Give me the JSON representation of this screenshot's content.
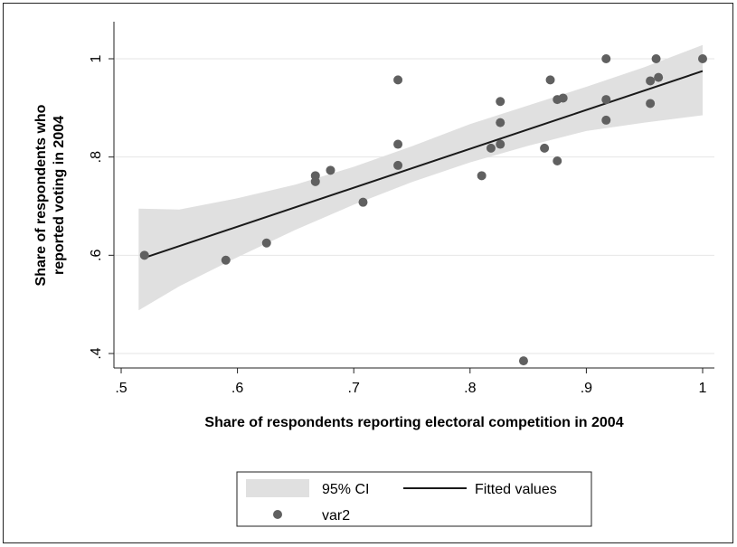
{
  "chart_data": {
    "type": "scatter",
    "xlabel": "Share of respondents reporting electoral competition in 2004",
    "ylabel_lines": [
      "Share of respondents who",
      "reported voting in 2004"
    ],
    "xlim": [
      0.5,
      1.0
    ],
    "ylim": [
      0.4,
      1.0
    ],
    "x_ticks": [
      0.5,
      0.6,
      0.7,
      0.8,
      0.9,
      1.0
    ],
    "x_tick_labels": [
      ".5",
      ".6",
      ".7",
      ".8",
      ".9",
      "1"
    ],
    "y_ticks": [
      0.4,
      0.6,
      0.8,
      1.0
    ],
    "y_tick_labels": [
      ".4",
      ".6",
      ".8",
      "1"
    ],
    "grid": "horizontal",
    "legend": {
      "placement": "bottom",
      "entries": [
        "95% CI",
        "Fitted values",
        "var2"
      ]
    },
    "colors": {
      "ci_band": "#e0e0e0",
      "fit_line": "#1a1a1a",
      "points": "#606060",
      "grid": "#e6e6e6"
    },
    "fitted_line": {
      "x": [
        0.52,
        1.0
      ],
      "y": [
        0.595,
        0.975
      ]
    },
    "ci_band": {
      "x": [
        0.515,
        0.55,
        0.6,
        0.65,
        0.7,
        0.75,
        0.8,
        0.85,
        0.9,
        0.95,
        1.0
      ],
      "lower": [
        0.488,
        0.537,
        0.596,
        0.652,
        0.703,
        0.749,
        0.789,
        0.823,
        0.853,
        0.87,
        0.885
      ],
      "upper": [
        0.695,
        0.693,
        0.716,
        0.744,
        0.78,
        0.822,
        0.867,
        0.905,
        0.943,
        0.983,
        1.028
      ]
    },
    "series": [
      {
        "name": "var2",
        "points": [
          [
            0.52,
            0.6
          ],
          [
            0.59,
            0.59
          ],
          [
            0.625,
            0.625
          ],
          [
            0.667,
            0.75
          ],
          [
            0.667,
            0.762
          ],
          [
            0.68,
            0.773
          ],
          [
            0.708,
            0.708
          ],
          [
            0.738,
            0.957
          ],
          [
            0.738,
            0.826
          ],
          [
            0.738,
            0.783
          ],
          [
            0.81,
            0.762
          ],
          [
            0.818,
            0.818
          ],
          [
            0.826,
            0.913
          ],
          [
            0.826,
            0.87
          ],
          [
            0.826,
            0.826
          ],
          [
            0.846,
            0.385
          ],
          [
            0.864,
            0.818
          ],
          [
            0.869,
            0.957
          ],
          [
            0.875,
            0.917
          ],
          [
            0.875,
            0.792
          ],
          [
            0.88,
            0.92
          ],
          [
            0.917,
            1.0
          ],
          [
            0.917,
            0.917
          ],
          [
            0.917,
            0.875
          ],
          [
            0.955,
            0.955
          ],
          [
            0.955,
            0.909
          ],
          [
            0.96,
            1.0
          ],
          [
            0.962,
            0.962
          ],
          [
            1.0,
            1.0
          ]
        ]
      }
    ]
  }
}
